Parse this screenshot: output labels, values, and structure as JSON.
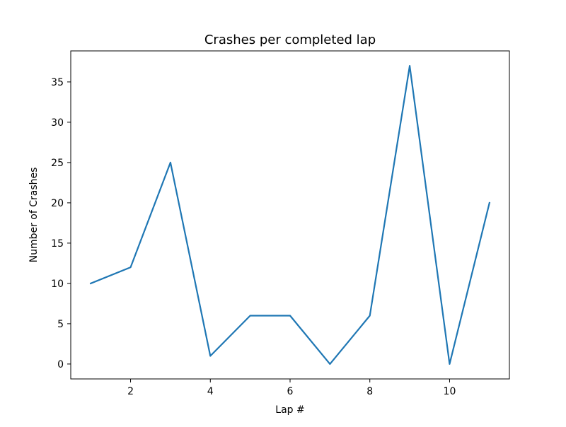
{
  "chart_data": {
    "type": "line",
    "title": "Crashes per completed lap",
    "xlabel": "Lap #",
    "ylabel": "Number of Crashes",
    "x": [
      1,
      2,
      3,
      4,
      5,
      6,
      7,
      8,
      9,
      10,
      11
    ],
    "series": [
      {
        "values": [
          10,
          12,
          25,
          1,
          6,
          6,
          0,
          6,
          37,
          0,
          20
        ],
        "color": "#1f77b4"
      }
    ],
    "xlim": [
      0.5,
      11.5
    ],
    "ylim": [
      -1.85,
      38.85
    ],
    "xticks": [
      2,
      4,
      6,
      8,
      10
    ],
    "yticks": [
      0,
      5,
      10,
      15,
      20,
      25,
      30,
      35
    ],
    "grid": false,
    "legend": "none"
  }
}
